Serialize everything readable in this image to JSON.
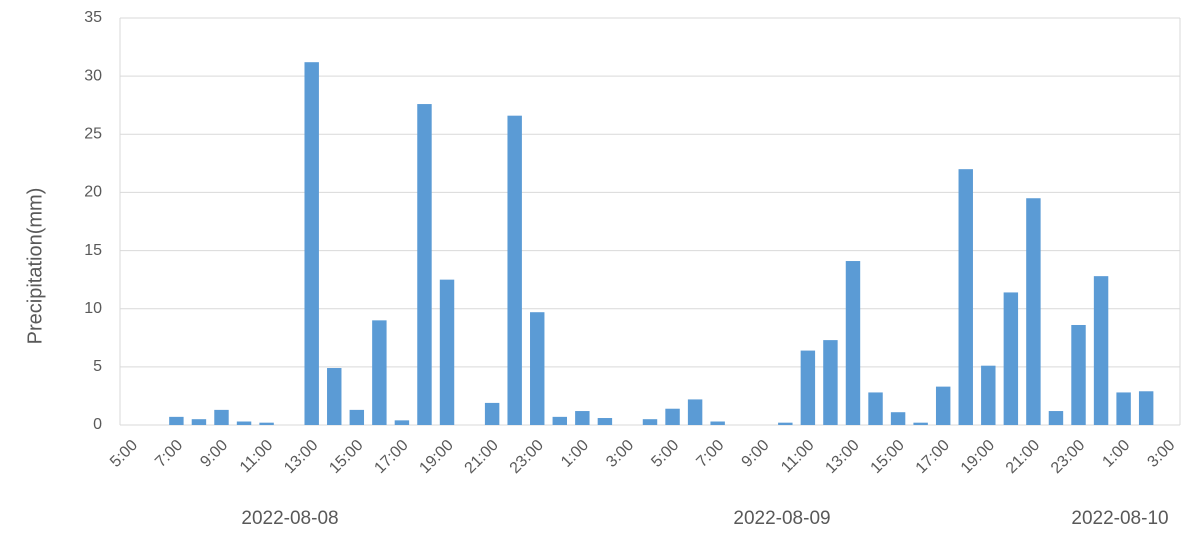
{
  "chart_data": {
    "type": "bar",
    "y_label": "Precipitation(mm)",
    "categories": [
      "5:00",
      null,
      "7:00",
      null,
      "9:00",
      null,
      "11:00",
      null,
      "13:00",
      null,
      "15:00",
      null,
      "17:00",
      null,
      "19:00",
      null,
      "21:00",
      null,
      "23:00",
      null,
      "1:00",
      null,
      "3:00",
      null,
      "5:00",
      null,
      "7:00",
      null,
      "9:00",
      null,
      "11:00",
      null,
      "13:00",
      null,
      "15:00",
      null,
      "17:00",
      null,
      "19:00",
      null,
      "21:00",
      null,
      "23:00",
      null,
      "1:00",
      null,
      "3:00"
    ],
    "values": [
      0,
      0,
      0.7,
      0.5,
      1.3,
      0.3,
      0.2,
      0,
      31.2,
      4.9,
      1.3,
      9.0,
      0.4,
      27.6,
      12.5,
      0,
      1.9,
      26.6,
      9.7,
      0.7,
      1.2,
      0.6,
      0,
      0.5,
      1.4,
      2.2,
      0.3,
      0,
      0,
      0.2,
      6.4,
      7.3,
      14.1,
      2.8,
      1.1,
      0.2,
      3.3,
      22.0,
      5.1,
      11.4,
      19.5,
      1.2,
      8.6,
      12.8,
      2.8,
      2.9,
      0
    ],
    "dates": [
      "2022-08-08",
      "2022-08-09",
      "2022-08-10"
    ],
    "color": "#5b9bd5",
    "ylim": [
      0,
      35
    ],
    "yticks": [
      0,
      5,
      10,
      15,
      20,
      25,
      30,
      35
    ],
    "grid": true
  }
}
